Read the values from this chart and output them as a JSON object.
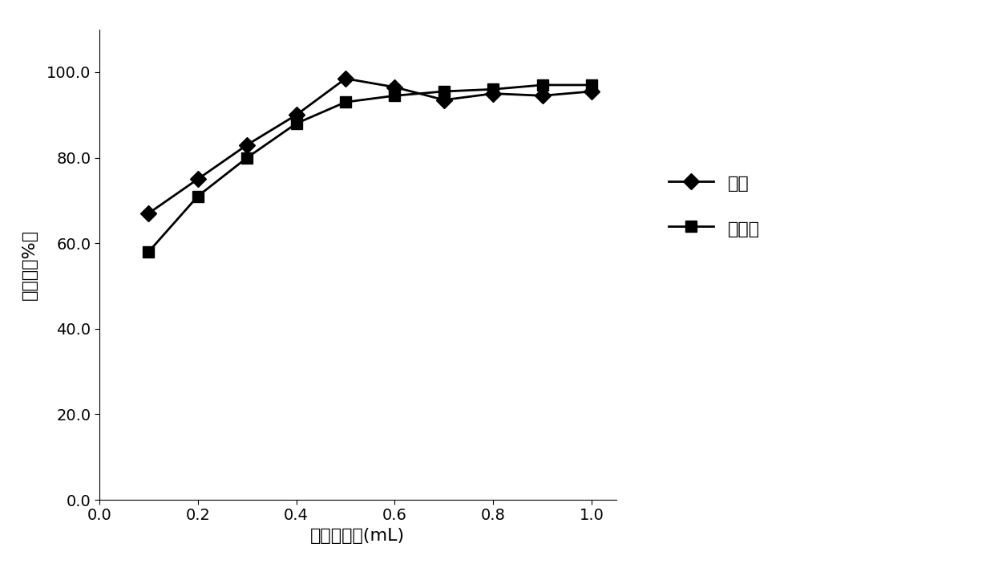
{
  "x_aniline": [
    0.1,
    0.2,
    0.3,
    0.4,
    0.5,
    0.6,
    0.7,
    0.8,
    0.9,
    1.0
  ],
  "y_aniline": [
    67.0,
    75.0,
    83.0,
    90.0,
    98.5,
    96.5,
    93.5,
    95.0,
    94.5,
    95.5
  ],
  "x_benzidine": [
    0.1,
    0.2,
    0.3,
    0.4,
    0.5,
    0.6,
    0.7,
    0.8,
    0.9,
    1.0
  ],
  "y_benzidine": [
    58.0,
    71.0,
    80.0,
    88.0,
    93.0,
    94.5,
    95.5,
    96.0,
    97.0,
    97.0
  ],
  "xlabel": "洗脱剂体积(mL)",
  "ylabel": "回收率（%）",
  "legend_aniline": "苯胺",
  "legend_benzidine": "联苯胺",
  "xlim": [
    0.0,
    1.05
  ],
  "ylim": [
    0.0,
    110.0
  ],
  "xticks": [
    0.0,
    0.2,
    0.4,
    0.6,
    0.8,
    1.0
  ],
  "yticks": [
    0.0,
    20.0,
    40.0,
    60.0,
    80.0,
    100.0
  ],
  "line_color": "#000000",
  "bg_color": "#ffffff",
  "label_fontsize": 16,
  "tick_fontsize": 14,
  "legend_fontsize": 16
}
